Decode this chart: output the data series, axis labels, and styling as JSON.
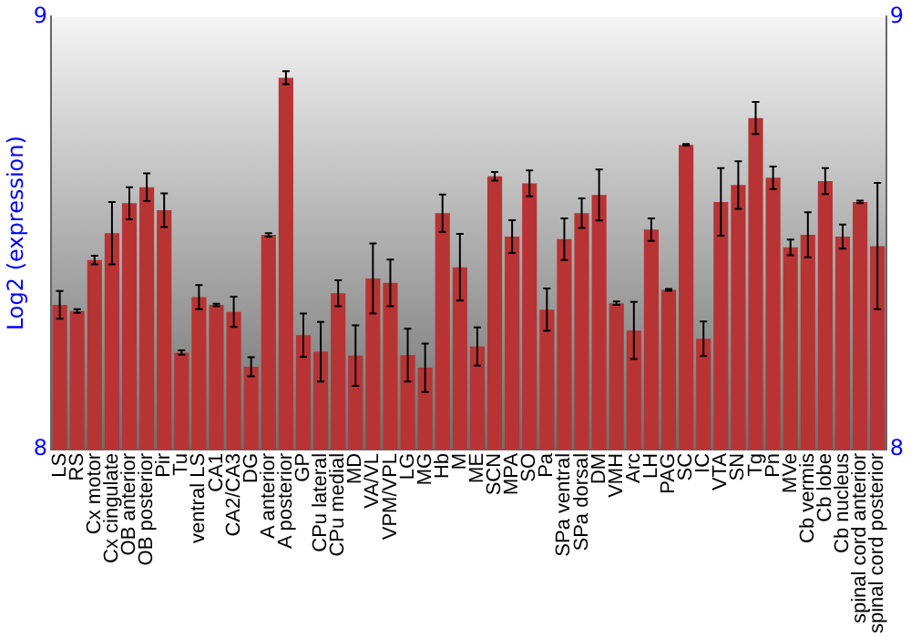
{
  "chart_data": {
    "type": "bar",
    "ylabel": "Log2 (expression)",
    "categories": [
      "LS",
      "RS",
      "Cx motor",
      "Cx cingulate",
      "OB anterior",
      "OB posterior",
      "Pir",
      "Tu",
      "ventral LS",
      "CA1",
      "CA2/CA3",
      "DG",
      "A anterior",
      "A posterior",
      "GP",
      "CPu lateral",
      "CPu medial",
      "MD",
      "VA/VL",
      "VPM/VPL",
      "LG",
      "MG",
      "Hb",
      "M",
      "ME",
      "SCN",
      "MPA",
      "SO",
      "Pa",
      "SPa ventral",
      "SPa dorsal",
      "DM",
      "VMH",
      "Arc",
      "LH",
      "PAG",
      "SC",
      "IC",
      "VTA",
      "SN",
      "Tg",
      "Pn",
      "MVe",
      "Cb vermis",
      "Cb lobe",
      "Cb nucleus",
      "spinal cord anterior",
      "spinal cord posterior"
    ],
    "values": [
      8.334,
      8.32,
      8.438,
      8.5,
      8.569,
      8.606,
      8.553,
      8.224,
      8.352,
      8.334,
      8.318,
      8.191,
      8.496,
      8.859,
      8.264,
      8.226,
      8.361,
      8.217,
      8.395,
      8.385,
      8.218,
      8.189,
      8.546,
      8.421,
      8.238,
      8.631,
      8.492,
      8.615,
      8.323,
      8.486,
      8.546,
      8.588,
      8.338,
      8.275,
      8.508,
      8.369,
      8.704,
      8.256,
      8.572,
      8.611,
      8.766,
      8.628,
      8.467,
      8.496,
      8.62,
      8.492,
      8.572,
      8.47
    ],
    "errors": [
      0.032,
      0.004,
      0.01,
      0.072,
      0.037,
      0.032,
      0.039,
      0.005,
      0.028,
      0.003,
      0.035,
      0.022,
      0.004,
      0.015,
      0.05,
      0.069,
      0.03,
      0.07,
      0.081,
      0.054,
      0.061,
      0.056,
      0.043,
      0.077,
      0.044,
      0.01,
      0.038,
      0.03,
      0.049,
      0.048,
      0.034,
      0.059,
      0.004,
      0.066,
      0.026,
      0.002,
      0.002,
      0.04,
      0.078,
      0.055,
      0.037,
      0.026,
      0.018,
      0.052,
      0.03,
      0.028,
      0.003,
      0.146
    ],
    "color": "#b83434",
    "ylim": [
      8,
      9
    ],
    "yticks": [
      8,
      9
    ],
    "y2lim": [
      8,
      9
    ],
    "y2ticks": [
      8,
      9
    ],
    "grid": false
  }
}
